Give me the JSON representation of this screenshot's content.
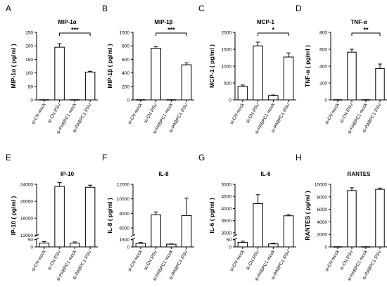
{
  "chart_data": [
    {
      "type": "bar",
      "panel_letter": "A",
      "title": "MIP-1α",
      "ylabel": "MIP-1α ( pg/ml )",
      "categories": [
        "si-CN mock",
        "si-CN RSV",
        "si-PABPC1 mock",
        "si-PABPC1 RSV"
      ],
      "values": [
        0,
        195,
        0,
        103
      ],
      "errors": [
        0,
        13,
        0,
        3
      ],
      "ylim": [
        0,
        250
      ],
      "yticks": [
        "0",
        "50",
        "100",
        "150",
        "200",
        "250"
      ],
      "significance": {
        "from": 1,
        "to": 3,
        "label": "***"
      }
    },
    {
      "type": "bar",
      "panel_letter": "B",
      "title": "MIP-1β",
      "ylabel": "MIP-1β ( pg/ml )",
      "categories": [
        "si-CN mock",
        "si-CN RSV",
        "si-PABPC1 mock",
        "si-PABPC1 RSV"
      ],
      "values": [
        0,
        765,
        0,
        520
      ],
      "errors": [
        0,
        22,
        0,
        28
      ],
      "ylim": [
        0,
        1000
      ],
      "yticks": [
        "0",
        "200",
        "400",
        "600",
        "800",
        "1000"
      ],
      "significance": {
        "from": 1,
        "to": 3,
        "label": "***"
      }
    },
    {
      "type": "bar",
      "panel_letter": "C",
      "title": "MCP-1",
      "ylabel": "MCP-1 ( pg/ml )",
      "categories": [
        "si-CN mock",
        "si-CN RSV",
        "si-PABPC1 mock",
        "si-PABPC1 RSV"
      ],
      "values": [
        400,
        1600,
        130,
        1270
      ],
      "errors": [
        40,
        110,
        15,
        120
      ],
      "ylim": [
        0,
        2000
      ],
      "yticks": [
        "0",
        "500",
        "1000",
        "1500",
        "2000"
      ],
      "significance": {
        "from": 1,
        "to": 3,
        "label": "*"
      }
    },
    {
      "type": "bar",
      "panel_letter": "D",
      "title": "TNF-α",
      "ylabel": "TNF-α ( pg/ml )",
      "categories": [
        "si-CN mock",
        "si-CN RSV",
        "si-PABPC1 mock",
        "si-PABPC1 RSV"
      ],
      "values": [
        0,
        565,
        0,
        370
      ],
      "errors": [
        0,
        35,
        0,
        55
      ],
      "ylim": [
        0,
        800
      ],
      "yticks": [
        "0",
        "200",
        "400",
        "600",
        "800"
      ],
      "significance": {
        "from": 1,
        "to": 3,
        "label": "**"
      }
    },
    {
      "type": "bar",
      "panel_letter": "E",
      "title": "IP-10",
      "ylabel": "IP-10 ( pg/ml )",
      "categories": [
        "si-CN mock",
        "si-CN RSV",
        "si-PABPC1 mock",
        "si-PABPC1 RSV"
      ],
      "values": [
        25,
        23500,
        25,
        23300
      ],
      "errors": [
        10,
        900,
        8,
        500
      ],
      "broken_axis": {
        "lower": [
          0,
          50
        ],
        "upper": [
          12000,
          24000
        ]
      },
      "yticks": [
        "0",
        "50",
        "12000",
        "16000",
        "20000",
        "24000"
      ],
      "significance": null
    },
    {
      "type": "bar",
      "panel_letter": "F",
      "title": "IL-8",
      "ylabel": "IL-8 ( pg/ml )",
      "categories": [
        "si-CN mock",
        "si-CN RSV",
        "si-PABPC1 mock",
        "si-PABPC1 RSV"
      ],
      "values": [
        700,
        7800,
        540,
        7700
      ],
      "errors": [
        180,
        400,
        60,
        2400
      ],
      "broken_axis": {
        "lower": [
          0,
          1500
        ],
        "upper": [
          5000,
          12000
        ]
      },
      "yticks": [
        "0",
        "1500",
        "6000",
        "8000",
        "10000",
        "12000"
      ],
      "significance": null
    },
    {
      "type": "bar",
      "panel_letter": "G",
      "title": "IL-6",
      "ylabel": "IL-6 ( pg/ml )",
      "categories": [
        "si-CN mock",
        "si-CN RSV",
        "si-PABPC1 mock",
        "si-PABPC1 RSV"
      ],
      "values": [
        30,
        4200,
        20,
        3700
      ],
      "errors": [
        8,
        370,
        5,
        40
      ],
      "broken_axis": {
        "lower": [
          0,
          50
        ],
        "upper": [
          2900,
          5000
        ]
      },
      "yticks": [
        "0",
        "50",
        "3000",
        "3500",
        "4000",
        "4500",
        "5000"
      ],
      "significance": null
    },
    {
      "type": "bar",
      "panel_letter": "H",
      "title": "RANTES",
      "ylabel": "RANTES ( pg/ml )",
      "categories": [
        "si-CN mock",
        "si-CN RSV",
        "si-PABPC1 mock",
        "si-PABPC1 RSV"
      ],
      "values": [
        0,
        9000,
        0,
        9200
      ],
      "errors": [
        0,
        450,
        0,
        200
      ],
      "ylim": [
        0,
        10000
      ],
      "yticks": [
        "0",
        "2000",
        "4000",
        "6000",
        "8000",
        "10000"
      ],
      "significance": null
    }
  ]
}
